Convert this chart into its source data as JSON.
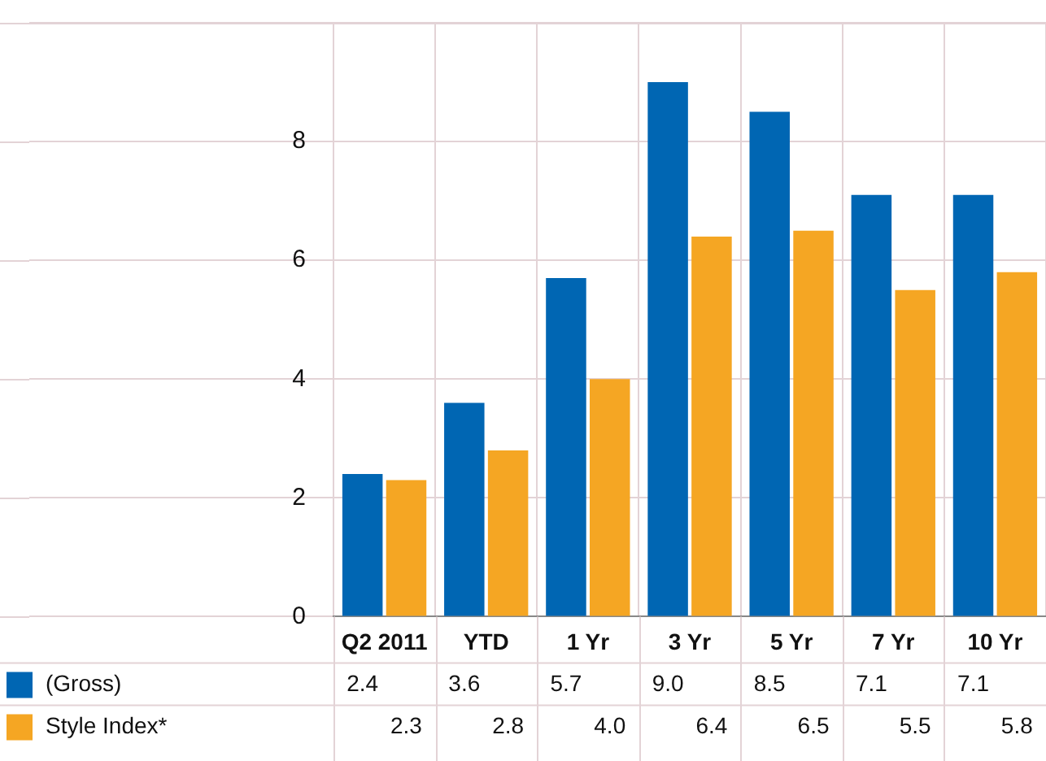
{
  "chart_data": {
    "type": "bar",
    "categories": [
      "Q2 2011",
      "YTD",
      "1 Yr",
      "3 Yr",
      "5 Yr",
      "7 Yr",
      "10 Yr"
    ],
    "series": [
      {
        "name": "(Gross)",
        "color": "#0066b3",
        "values": [
          2.4,
          3.6,
          5.7,
          9.0,
          8.5,
          7.1,
          7.1
        ],
        "value_labels": [
          "2.4",
          "3.6",
          "5.7",
          "9.0",
          "8.5",
          "7.1",
          "7.1"
        ]
      },
      {
        "name": "Style Index*",
        "color": "#f5a623",
        "values": [
          2.3,
          2.8,
          4.0,
          6.4,
          6.5,
          5.5,
          5.8
        ],
        "value_labels": [
          "2.3",
          "2.8",
          "4.0",
          "6.4",
          "6.5",
          "5.5",
          "5.8"
        ]
      }
    ],
    "ylim": [
      0,
      10
    ],
    "yticks": [
      0,
      2,
      4,
      6,
      8,
      {
        "value": 10,
        "label": null
      }
    ],
    "grid": true,
    "legend": "bottom"
  }
}
